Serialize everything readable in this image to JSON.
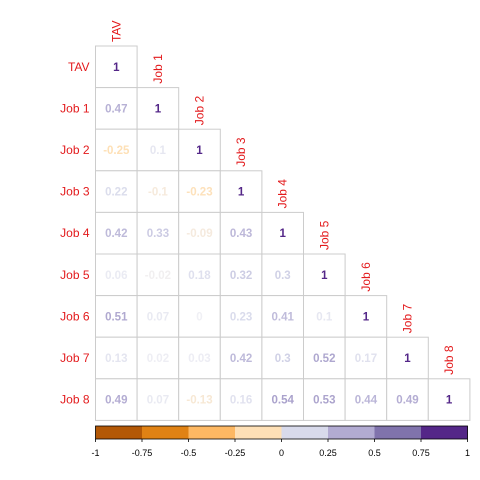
{
  "chart_data": {
    "type": "heatmap",
    "variables": [
      "TAV",
      "Job 1",
      "Job 2",
      "Job 3",
      "Job 4",
      "Job 5",
      "Job 6",
      "Job 7",
      "Job 8"
    ],
    "matrix": [
      [
        1
      ],
      [
        0.47,
        1
      ],
      [
        -0.25,
        0.1,
        1
      ],
      [
        0.22,
        -0.1,
        -0.23,
        1
      ],
      [
        0.42,
        0.33,
        -0.09,
        0.43,
        1
      ],
      [
        0.06,
        -0.02,
        0.18,
        0.32,
        0.3,
        1
      ],
      [
        0.51,
        0.07,
        0,
        0.23,
        0.41,
        0.1,
        1
      ],
      [
        0.13,
        0.02,
        0.03,
        0.42,
        0.3,
        0.52,
        0.17,
        1
      ],
      [
        0.49,
        0.07,
        -0.13,
        0.16,
        0.54,
        0.53,
        0.44,
        0.49,
        1
      ]
    ],
    "colorbar": {
      "range": [
        -1,
        1
      ],
      "ticks": [
        "-1",
        "-0.75",
        "-0.5",
        "-0.25",
        "0",
        "0.25",
        "0.5",
        "0.75",
        "1"
      ],
      "colors": [
        "#b35806",
        "#e08214",
        "#fdb863",
        "#fee0b6",
        "#d8daeb",
        "#b2abd2",
        "#8073ac",
        "#542788"
      ]
    },
    "label_color": "#e31a1c",
    "grid_color": "#cccccc"
  }
}
